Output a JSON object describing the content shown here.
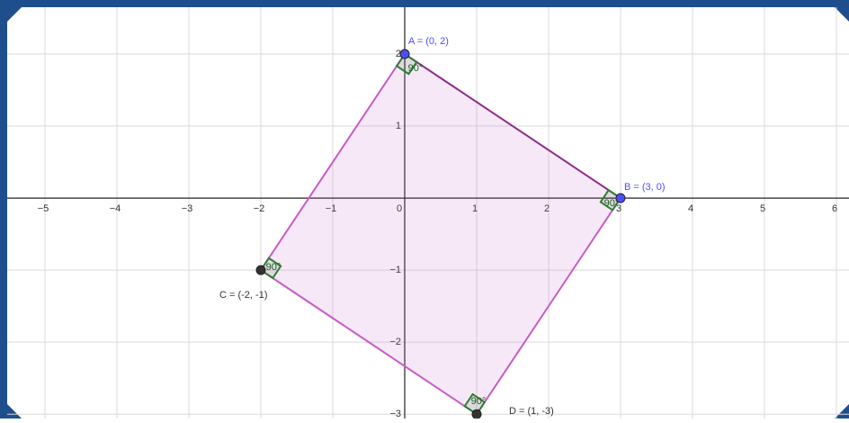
{
  "plot": {
    "xlim": [
      -5.525,
      6.175
    ],
    "ylim": [
      -3.06,
      2.65
    ],
    "xticks": [
      {
        "value": -5,
        "label": "−5"
      },
      {
        "value": -4,
        "label": "−4"
      },
      {
        "value": -3,
        "label": "−3"
      },
      {
        "value": -2,
        "label": "−2"
      },
      {
        "value": -1,
        "label": "−1"
      },
      0,
      1,
      2,
      3,
      4,
      5,
      6
    ],
    "yticks": [
      {
        "value": -3,
        "label": "−3"
      },
      {
        "value": -2,
        "label": "−2"
      },
      {
        "value": -1,
        "label": "−1"
      },
      1,
      2
    ],
    "grid": true,
    "points": [
      {
        "label": "A = (0, 2)",
        "x": 0,
        "y": 2,
        "color": "#4d4dff"
      },
      {
        "label": "B = (3, 0)",
        "x": 3,
        "y": 0,
        "color": "#4d4dff"
      },
      {
        "label": "C = (-2, -1)",
        "x": -2,
        "y": -1,
        "color": "#333333"
      },
      {
        "label": "D = (1, -3)",
        "x": 1,
        "y": -3,
        "color": "#333333"
      }
    ],
    "angles": [
      "90°",
      "90°",
      "90°",
      "90°"
    ]
  }
}
